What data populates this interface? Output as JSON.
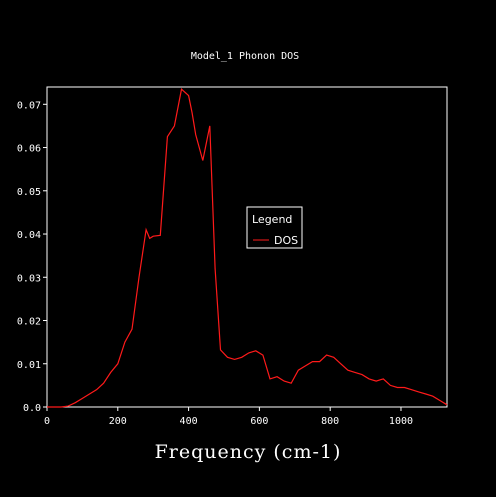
{
  "colors": {
    "background": "#000000",
    "foreground": "#ffffff",
    "series": "#ff1a1a"
  },
  "chart_data": {
    "type": "line",
    "title": "Model_1 Phonon DOS",
    "xlabel": "Frequency (cm-1)",
    "ylabel": "",
    "xlim": [
      0,
      1130
    ],
    "ylim": [
      0,
      0.074
    ],
    "grid": false,
    "legend": {
      "title": "Legend",
      "placement": "center-right"
    },
    "x_ticks": [
      0,
      200,
      400,
      600,
      800,
      1000
    ],
    "y_ticks": [
      0.0,
      0.01,
      0.02,
      0.03,
      0.04,
      0.05,
      0.06,
      0.07
    ],
    "x_tick_labels": [
      "0",
      "200",
      "400",
      "600",
      "800",
      "1000"
    ],
    "y_tick_labels": [
      "0.0",
      "0.01",
      "0.02",
      "0.03",
      "0.04",
      "0.05",
      "0.06",
      "0.07"
    ],
    "series": [
      {
        "name": "DOS",
        "color": "#ff1a1a",
        "x": [
          0,
          40,
          60,
          80,
          100,
          120,
          140,
          160,
          180,
          200,
          220,
          240,
          260,
          280,
          290,
          300,
          320,
          340,
          360,
          380,
          400,
          410,
          420,
          440,
          460,
          475,
          490,
          510,
          530,
          550,
          570,
          590,
          610,
          630,
          650,
          670,
          690,
          710,
          730,
          750,
          770,
          790,
          810,
          830,
          850,
          870,
          890,
          910,
          930,
          950,
          970,
          990,
          1010,
          1030,
          1050,
          1070,
          1090,
          1110,
          1130
        ],
        "y": [
          0.0,
          0.0,
          0.0002,
          0.001,
          0.002,
          0.003,
          0.004,
          0.0055,
          0.008,
          0.01,
          0.015,
          0.018,
          0.03,
          0.041,
          0.039,
          0.0395,
          0.0397,
          0.0625,
          0.065,
          0.0735,
          0.072,
          0.068,
          0.063,
          0.057,
          0.065,
          0.032,
          0.0132,
          0.0115,
          0.011,
          0.0115,
          0.0125,
          0.013,
          0.012,
          0.0065,
          0.007,
          0.006,
          0.0055,
          0.0085,
          0.0095,
          0.0105,
          0.0105,
          0.012,
          0.0115,
          0.01,
          0.0085,
          0.008,
          0.0075,
          0.0065,
          0.006,
          0.0065,
          0.005,
          0.0045,
          0.0045,
          0.004,
          0.0035,
          0.003,
          0.0025,
          0.0015,
          0.0005
        ]
      }
    ]
  }
}
